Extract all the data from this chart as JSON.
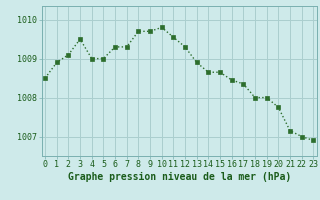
{
  "title": "Graphe pression niveau de la mer (hPa)",
  "x_values": [
    0,
    1,
    2,
    3,
    4,
    5,
    6,
    7,
    8,
    9,
    10,
    11,
    12,
    13,
    14,
    15,
    16,
    17,
    18,
    19,
    20,
    21,
    22,
    23
  ],
  "y_values": [
    1008.5,
    1008.9,
    1009.1,
    1009.5,
    1009.0,
    1009.0,
    1009.3,
    1009.3,
    1009.7,
    1009.7,
    1009.8,
    1009.55,
    1009.3,
    1008.9,
    1008.65,
    1008.65,
    1008.45,
    1008.35,
    1008.0,
    1008.0,
    1007.75,
    1007.15,
    1007.0,
    1006.9
  ],
  "line_color": "#2d6e2d",
  "marker_color": "#2d6e2d",
  "bg_color": "#ceeaea",
  "grid_color": "#aacece",
  "label_color": "#1a5c1a",
  "title_color": "#1a5c1a",
  "ylim_min": 1006.5,
  "ylim_max": 1010.35,
  "yticks": [
    1007,
    1008,
    1009,
    1010
  ],
  "xticks": [
    0,
    1,
    2,
    3,
    4,
    5,
    6,
    7,
    8,
    9,
    10,
    11,
    12,
    13,
    14,
    15,
    16,
    17,
    18,
    19,
    20,
    21,
    22,
    23
  ],
  "tick_fontsize": 6,
  "title_fontsize": 7,
  "linewidth": 1.0,
  "markersize": 2.5
}
